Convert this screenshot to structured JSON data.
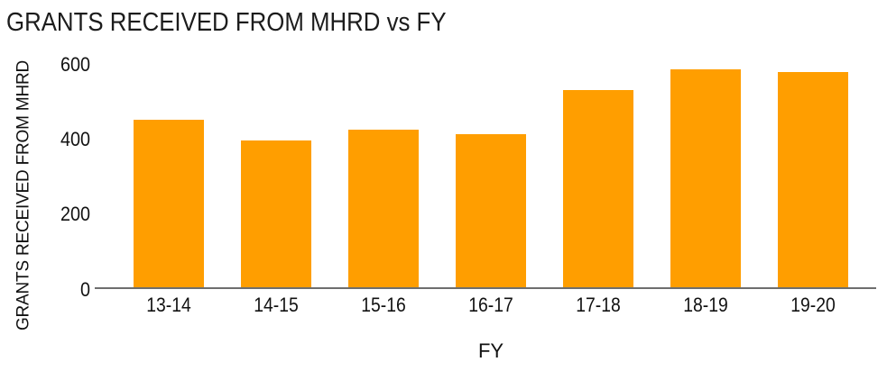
{
  "chart_data": {
    "type": "bar",
    "title": "GRANTS RECEIVED FROM MHRD vs FY",
    "xlabel": "FY",
    "ylabel": "GRANTS RECEIVED FROM MHRD",
    "categories": [
      "13-14",
      "14-15",
      "15-16",
      "16-17",
      "17-18",
      "18-19",
      "19-20"
    ],
    "values": [
      450,
      395,
      425,
      412,
      530,
      585,
      580
    ],
    "y_ticks": [
      0,
      200,
      400,
      600
    ],
    "ylim": [
      0,
      600
    ],
    "grid": false,
    "legend": "none",
    "colors": {
      "bar": "#FF9E00",
      "axis_line": "#6E6E6E",
      "text": "#1a1a1a"
    }
  }
}
